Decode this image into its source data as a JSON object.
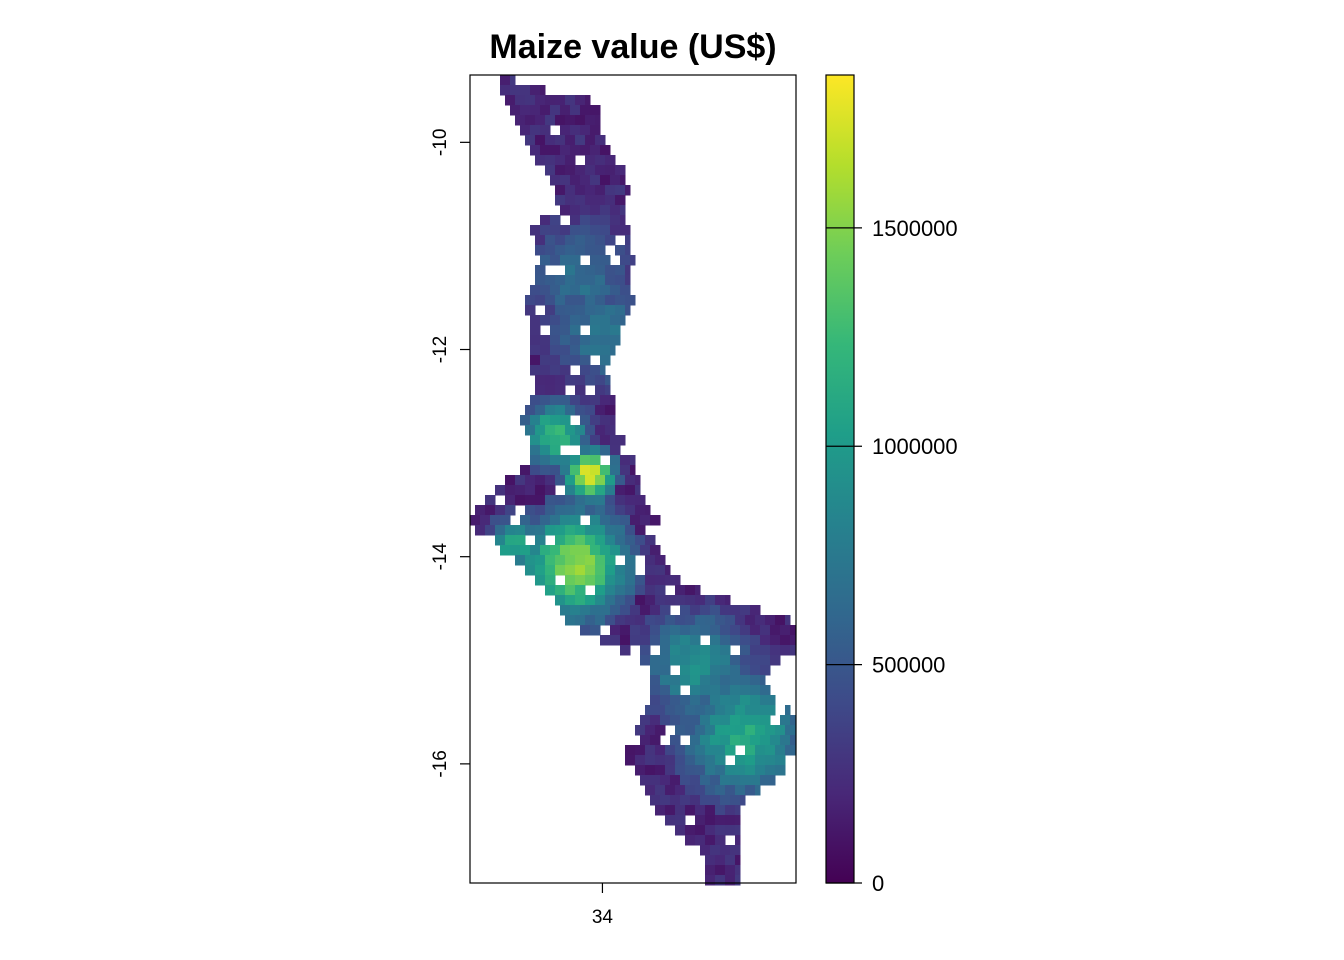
{
  "chart_data": {
    "type": "heatmap",
    "title": "Maize value (US$)",
    "xlabel": "",
    "ylabel": "",
    "x_ticks": [
      34
    ],
    "x_tick_labels": [
      "34"
    ],
    "y_ticks": [
      -10,
      -12,
      -14,
      -16
    ],
    "y_tick_labels": [
      "-10",
      "-12",
      "-14",
      "-16"
    ],
    "xlim": [
      32.7,
      35.9
    ],
    "ylim": [
      -17.15,
      -9.35
    ],
    "grid": false,
    "colorbar": {
      "palette": "viridis",
      "colors": [
        "#440154",
        "#482878",
        "#3E4A89",
        "#31688E",
        "#26828E",
        "#1F9E89",
        "#35B779",
        "#6DCD59",
        "#B4DE2C",
        "#FDE725"
      ],
      "min": 0,
      "max": 1850000,
      "ticks": [
        0,
        500000,
        1000000,
        1500000
      ],
      "tick_labels": [
        "0",
        "500000",
        "1000000",
        "1500000"
      ]
    }
  }
}
